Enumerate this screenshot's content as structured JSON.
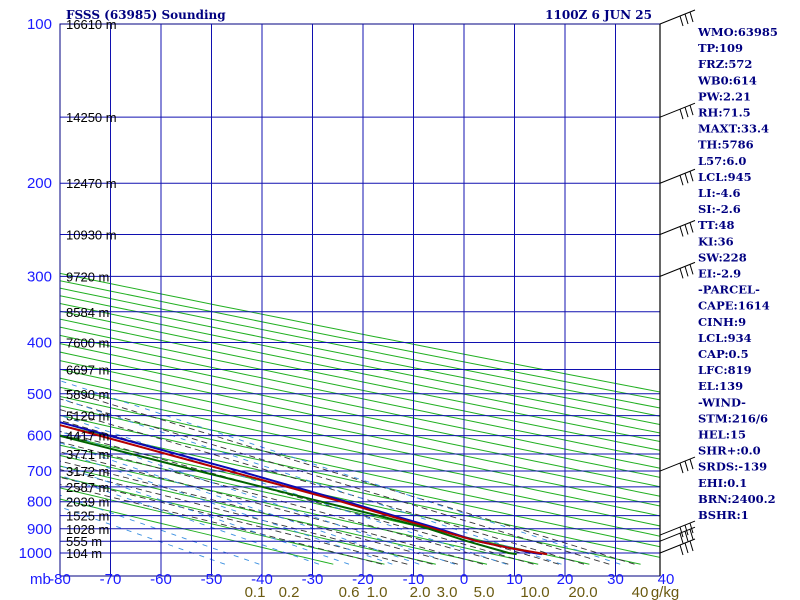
{
  "header": {
    "title": "FSSS (63985) Sounding",
    "valid_time": "1100Z  6 JUN 25"
  },
  "chart_data": {
    "type": "line",
    "subtype": "skew-t log-p sounding",
    "pressure_unit_label": "mb",
    "pressure_axis": {
      "ticks": [
        100,
        200,
        300,
        400,
        500,
        600,
        700,
        800,
        900,
        1000
      ],
      "range": [
        100,
        1050
      ]
    },
    "temperature_axis": {
      "ticks": [
        "-80",
        "-70",
        "-60",
        "-50",
        "-40",
        "-30",
        "-20",
        "-10",
        "0",
        "10",
        "20",
        "30",
        "40"
      ],
      "range": [
        -80,
        40
      ]
    },
    "mixing_ratio_axis": {
      "unit_label": "g/kg",
      "ticks": [
        "0.1",
        "0.2",
        "0.6",
        "1.0",
        "2.0",
        "3.0",
        "5.0",
        "10.0",
        "20.0",
        "40"
      ]
    },
    "height_labels": [
      {
        "p": 100,
        "text": "16610 m"
      },
      {
        "p": 150,
        "text": "14250 m"
      },
      {
        "p": 200,
        "text": "12470 m"
      },
      {
        "p": 250,
        "text": "10930 m"
      },
      {
        "p": 300,
        "text": "9720 m"
      },
      {
        "p": 350,
        "text": "8584 m"
      },
      {
        "p": 400,
        "text": "7600 m"
      },
      {
        "p": 450,
        "text": "6697 m"
      },
      {
        "p": 500,
        "text": "5890 m"
      },
      {
        "p": 550,
        "text": "5120 m"
      },
      {
        "p": 600,
        "text": "4417 m"
      },
      {
        "p": 650,
        "text": "3771 m"
      },
      {
        "p": 700,
        "text": "3172 m"
      },
      {
        "p": 750,
        "text": "2587 m"
      },
      {
        "p": 800,
        "text": "2039 m"
      },
      {
        "p": 850,
        "text": "1525 m"
      },
      {
        "p": 900,
        "text": "1028 m"
      },
      {
        "p": 950,
        "text": "555 m"
      },
      {
        "p": 1000,
        "text": "104 m"
      }
    ],
    "series": [
      {
        "key": "parcel",
        "color": "#0a0ab4",
        "points": [
          [
            1005,
            27
          ],
          [
            1000,
            26
          ],
          [
            950,
            21
          ],
          [
            900,
            20
          ],
          [
            850,
            18
          ],
          [
            800,
            16
          ],
          [
            700,
            11
          ],
          [
            600,
            4
          ],
          [
            500,
            -4.5
          ],
          [
            400,
            -15
          ],
          [
            350,
            -22
          ],
          [
            300,
            -30
          ],
          [
            250,
            -39
          ],
          [
            200,
            -50
          ],
          [
            150,
            -62
          ],
          [
            120,
            -73
          ],
          [
            110,
            -78
          ]
        ]
      },
      {
        "key": "temperature",
        "color": "#b40000",
        "points": [
          [
            1005,
            28
          ],
          [
            1000,
            27
          ],
          [
            980,
            24
          ],
          [
            950,
            21
          ],
          [
            900,
            19
          ],
          [
            850,
            17
          ],
          [
            800,
            15
          ],
          [
            700,
            9
          ],
          [
            600,
            2
          ],
          [
            500,
            -7
          ],
          [
            400,
            -18
          ],
          [
            350,
            -24
          ],
          [
            300,
            -31
          ],
          [
            250,
            -41
          ],
          [
            200,
            -52
          ],
          [
            150,
            -63
          ],
          [
            120,
            -74
          ],
          [
            105,
            -80
          ]
        ]
      },
      {
        "key": "dewpoint",
        "color": "#006400",
        "points": [
          [
            1005,
            22
          ],
          [
            1000,
            21
          ],
          [
            950,
            19
          ],
          [
            900,
            18
          ],
          [
            850,
            15
          ],
          [
            800,
            11
          ],
          [
            700,
            3
          ],
          [
            600,
            -6
          ],
          [
            500,
            -17
          ],
          [
            450,
            -27
          ],
          [
            400,
            -37
          ],
          [
            350,
            -48
          ],
          [
            300,
            -60
          ],
          [
            270,
            -64
          ],
          [
            250,
            -68
          ],
          [
            220,
            -70
          ],
          [
            200,
            -75
          ],
          [
            150,
            -84
          ],
          [
            120,
            -90
          ],
          [
            110,
            -92
          ]
        ]
      }
    ],
    "wind_barbs": [
      {
        "p": 100,
        "label": "barb"
      },
      {
        "p": 150,
        "label": "barb"
      },
      {
        "p": 200,
        "label": "barb"
      },
      {
        "p": 250,
        "label": "barb"
      },
      {
        "p": 300,
        "label": "barb"
      },
      {
        "p": 700,
        "label": "barb"
      },
      {
        "p": 925,
        "label": "barb"
      },
      {
        "p": 950,
        "label": "barb"
      },
      {
        "p": 1000,
        "label": "barb"
      }
    ]
  },
  "indices": [
    "WMO:63985",
    "TP:109",
    "FRZ:572",
    "WB0:614",
    "PW:2.21",
    "RH:71.5",
    "MAXT:33.4",
    "TH:5786",
    "L57:6.0",
    "LCL:945",
    "LI:-4.6",
    "SI:-2.6",
    "TT:48",
    "KI:36",
    "SW:228",
    "EI:-2.9",
    "-PARCEL-",
    "CAPE:1614",
    "CINH:9",
    "LCL:934",
    "CAP:0.5",
    "LFC:819",
    "EL:139",
    "-WIND-",
    "STM:216/6",
    "HEL:15",
    "SHR+:0.0",
    "SRDS:-139",
    "EHI:0.1",
    "BRN:2400.2",
    "BSHR:1"
  ],
  "colors": {
    "frame": "#000080",
    "isobar": "#1010b0",
    "isotherm": "#1010b0",
    "dry_adiabat": "#22b022",
    "moist_adiabat": "#333333",
    "mixing_ratio": "#3a8fe0",
    "label_blue": "#1a1aff"
  }
}
